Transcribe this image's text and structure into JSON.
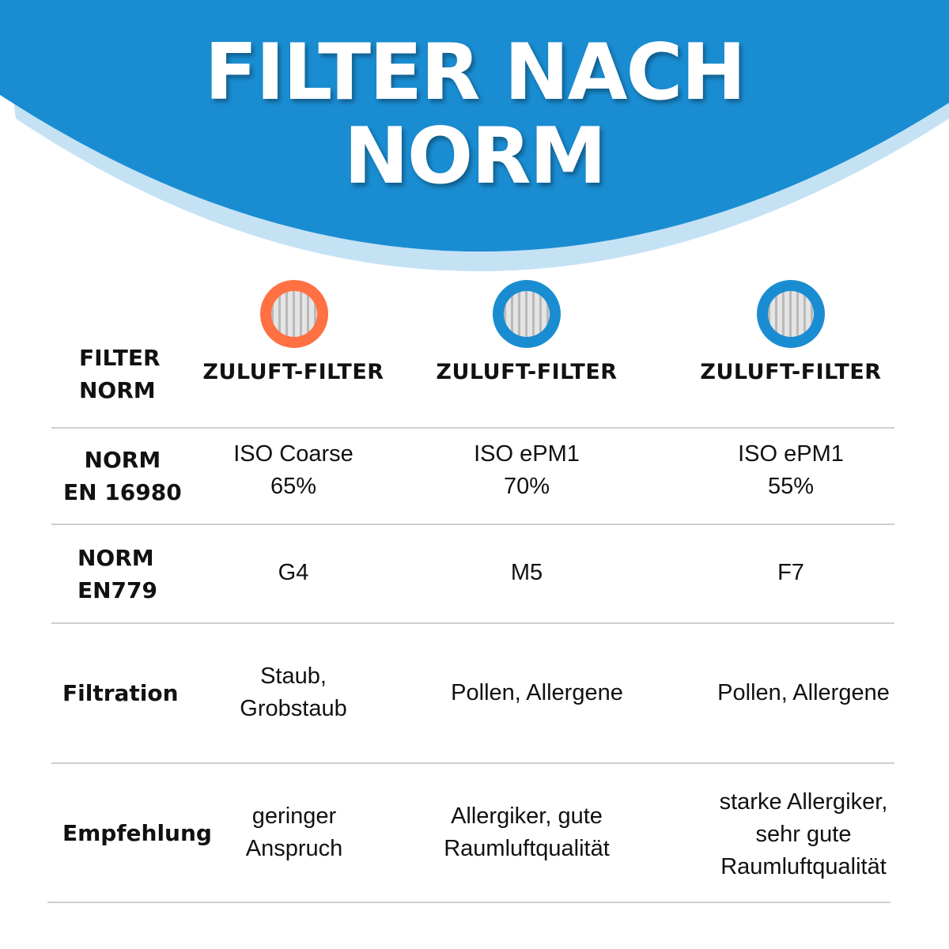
{
  "title": [
    "FILTER NACH",
    "NORM"
  ],
  "colors": {
    "header_blue": "#1a8dd2",
    "header_light": "#c5e2f5",
    "orange": "#ff7043",
    "blue": "#1a8dd2"
  },
  "row_labels": {
    "filter": [
      "FILTER",
      "NORM"
    ],
    "en16980": [
      "NORM",
      "EN 16980"
    ],
    "en779": [
      "NORM",
      "EN779"
    ],
    "filtration": "Filtration",
    "empfehlung": "Empfehlung"
  },
  "columns": [
    {
      "icon": "filter-orange-icon",
      "header": "ZULUFT-FILTER",
      "en16980": [
        "ISO Coarse",
        "65%"
      ],
      "en779": "G4",
      "filtration": [
        "Staub,",
        "Grobstaub"
      ],
      "empfehlung": [
        "geringer",
        "Anspruch"
      ]
    },
    {
      "icon": "filter-blue-icon",
      "header": "ZULUFT-FILTER",
      "en16980": [
        "ISO ePM1",
        "70%"
      ],
      "en779": "M5",
      "filtration": [
        "Pollen, Allergene"
      ],
      "empfehlung": [
        "Allergiker, gute",
        "Raumluftqualität"
      ]
    },
    {
      "icon": "filter-blue-icon",
      "header": "ZULUFT-FILTER",
      "en16980": [
        "ISO ePM1",
        "55%"
      ],
      "en779": "F7",
      "filtration": [
        "Pollen, Allergene"
      ],
      "empfehlung": [
        "starke Allergiker,",
        "sehr gute",
        "Raumluftqualität"
      ]
    }
  ]
}
